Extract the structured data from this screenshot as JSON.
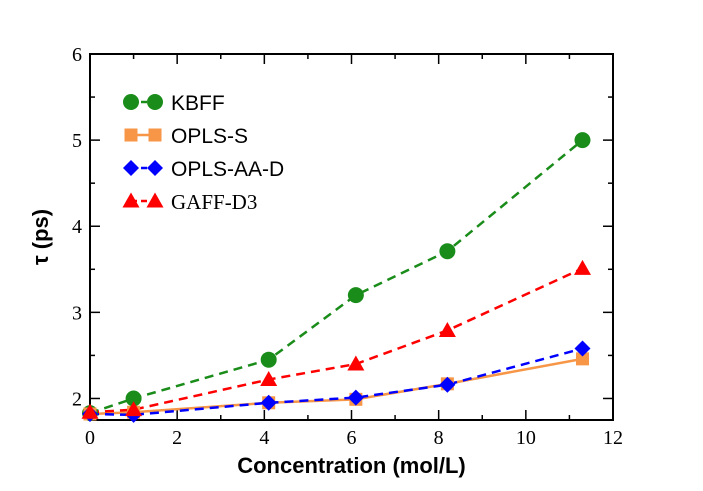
{
  "chart_data": {
    "type": "line",
    "xlabel": "Concentration (mol/L)",
    "ylabel": "τ (ps)",
    "xlim": [
      0,
      12
    ],
    "ylim": [
      1.75,
      6
    ],
    "x_ticks": [
      "0",
      "2",
      "4",
      "6",
      "8",
      "10",
      "12"
    ],
    "y_ticks": [
      "2",
      "3",
      "4",
      "5",
      "6"
    ],
    "grid": false,
    "legend_position": "top-left",
    "series": [
      {
        "name": "KBFF",
        "color": "#1a8c1a",
        "marker": "circle",
        "line": "dashed",
        "x": [
          0,
          1,
          4.1,
          6.1,
          8.2,
          11.3
        ],
        "y": [
          1.83,
          2.0,
          2.45,
          3.2,
          3.71,
          5.0
        ]
      },
      {
        "name": "OPLS-S",
        "color": "#f79646",
        "marker": "square",
        "line": "solid",
        "x": [
          0,
          1,
          4.1,
          6.1,
          8.2,
          11.3
        ],
        "y": [
          1.82,
          1.84,
          1.95,
          1.99,
          2.17,
          2.46
        ]
      },
      {
        "name": "OPLS-AA-D",
        "color": "#0000ff",
        "marker": "diamond",
        "line": "dashed",
        "x": [
          0,
          1,
          4.1,
          6.1,
          8.2,
          11.3
        ],
        "y": [
          1.82,
          1.81,
          1.95,
          2.01,
          2.16,
          2.58
        ]
      },
      {
        "name": "GAFF-D3",
        "color": "#ff0000",
        "marker": "triangle",
        "line": "dashed",
        "x": [
          0,
          1,
          4.1,
          6.1,
          8.2,
          11.3
        ],
        "y": [
          1.84,
          1.87,
          2.22,
          2.4,
          2.79,
          3.51
        ]
      }
    ]
  }
}
